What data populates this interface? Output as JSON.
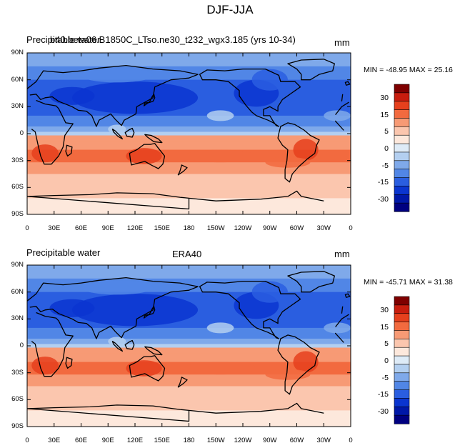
{
  "figure": {
    "title": "DJF-JJA"
  },
  "panels": [
    {
      "left_title": "Precipitable water",
      "center_title": "b40.beta06.B1850C_LTso.ne30_t232_wgx3.185 (yrs 10-34)",
      "units": "mm",
      "min": -48.95,
      "max": 25.16,
      "minmax_text": "MIN = -48.95 MAX = 25.16"
    },
    {
      "left_title": "Precipitable water",
      "center_title": "ERA40",
      "units": "mm",
      "min": -45.71,
      "max": 31.38,
      "minmax_text": "MIN = -45.71 MAX = 31.38"
    }
  ],
  "lat_ticks": [
    "90N",
    "60N",
    "30N",
    "0",
    "30S",
    "60S",
    "90S"
  ],
  "lon_ticks": [
    "0",
    "30E",
    "60E",
    "90E",
    "120E",
    "150E",
    "180",
    "150W",
    "120W",
    "90W",
    "60W",
    "30W",
    "0"
  ],
  "colorbar": {
    "labels": [
      "30",
      "15",
      "5",
      "0",
      "-5",
      "-15",
      "-30"
    ],
    "colors": [
      "#7f0000",
      "#c81d0e",
      "#e6401d",
      "#f26a3f",
      "#f79a75",
      "#fbc6ae",
      "#fde8dc",
      "#deebf7",
      "#b3cff0",
      "#7fa9ea",
      "#5186e6",
      "#2a5ee0",
      "#0a35d0",
      "#0018a8",
      "#000080"
    ]
  },
  "field_colors": {
    "deep_blue": "#0a35d0",
    "blue": "#2a5ee0",
    "mid_blue": "#5186e6",
    "light_blue": "#7fa9ea",
    "pale_blue": "#b3cff0",
    "near_white": "#fde8dc",
    "pale_red": "#fbc6ae",
    "salmon": "#f79a75",
    "orange": "#f26a3f",
    "red": "#e6401d"
  }
}
